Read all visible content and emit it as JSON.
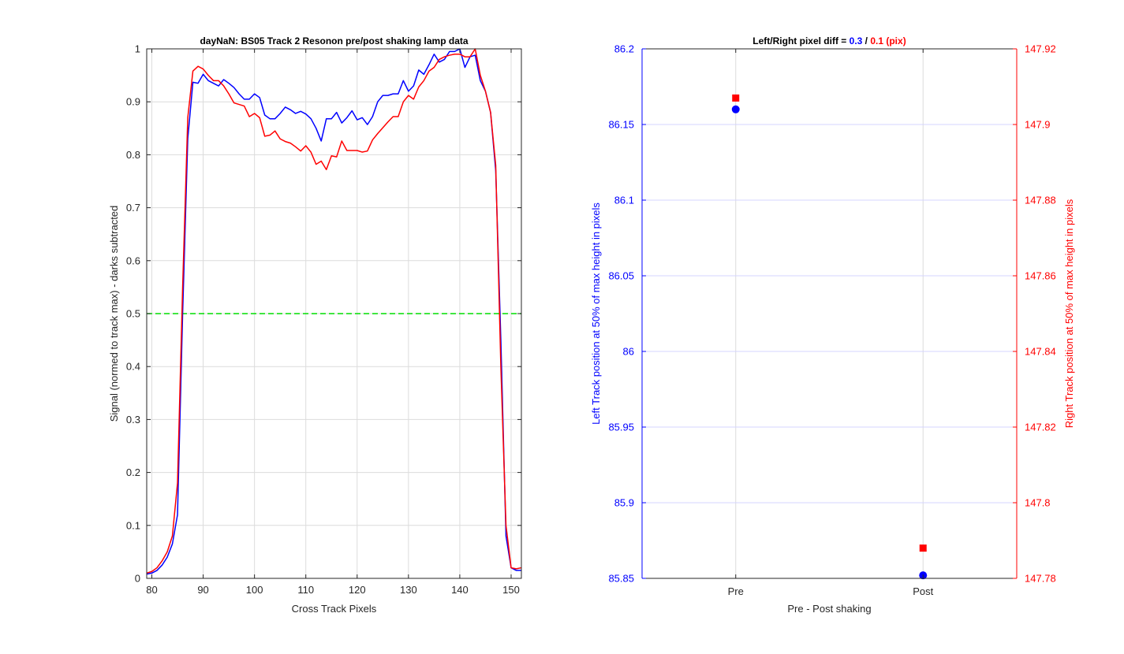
{
  "colors": {
    "blue": "#0000ff",
    "red": "#ff0000",
    "green": "#00dd00",
    "axis": "#262626",
    "grid": "#d9d9d9",
    "grid_blue": "#ccccff"
  },
  "chart_data": [
    {
      "type": "line",
      "title": "dayNaN: BS05  Track 2 Resonon pre/post shaking lamp data",
      "xlabel": "Cross Track Pixels",
      "ylabel": "Signal (normed to track max) - darks subtracted",
      "xlim": [
        79,
        152
      ],
      "ylim": [
        0,
        1
      ],
      "xticks": [
        80,
        90,
        100,
        110,
        120,
        130,
        140,
        150
      ],
      "yticks": [
        0,
        0.1,
        0.2,
        0.3,
        0.4,
        0.5,
        0.6,
        0.7,
        0.8,
        0.9,
        1
      ],
      "grid": true,
      "x": [
        79,
        80,
        81,
        82,
        83,
        84,
        85,
        86,
        87,
        88,
        89,
        90,
        91,
        92,
        93,
        94,
        95,
        96,
        97,
        98,
        99,
        100,
        101,
        102,
        103,
        104,
        105,
        106,
        107,
        108,
        109,
        110,
        111,
        112,
        113,
        114,
        115,
        116,
        117,
        118,
        119,
        120,
        121,
        122,
        123,
        124,
        125,
        126,
        127,
        128,
        129,
        130,
        131,
        132,
        133,
        134,
        135,
        136,
        137,
        138,
        139,
        140,
        141,
        142,
        143,
        144,
        145,
        146,
        147,
        148,
        149,
        150,
        151,
        152
      ],
      "series": [
        {
          "color": "#0000ff",
          "values": [
            0.008,
            0.01,
            0.015,
            0.025,
            0.04,
            0.065,
            0.12,
            0.5,
            0.83,
            0.937,
            0.935,
            0.952,
            0.94,
            0.935,
            0.93,
            0.942,
            0.935,
            0.927,
            0.915,
            0.905,
            0.905,
            0.915,
            0.908,
            0.875,
            0.868,
            0.868,
            0.878,
            0.89,
            0.885,
            0.878,
            0.882,
            0.877,
            0.868,
            0.85,
            0.826,
            0.868,
            0.868,
            0.88,
            0.86,
            0.87,
            0.883,
            0.866,
            0.87,
            0.857,
            0.872,
            0.9,
            0.912,
            0.912,
            0.915,
            0.915,
            0.94,
            0.92,
            0.93,
            0.96,
            0.952,
            0.97,
            0.99,
            0.975,
            0.98,
            0.995,
            0.995,
            1.0,
            0.965,
            0.985,
            0.988,
            0.94,
            0.92,
            0.88,
            0.77,
            0.45,
            0.08,
            0.02,
            0.015,
            0.015
          ]
        },
        {
          "color": "#ff0000",
          "values": [
            0.01,
            0.013,
            0.02,
            0.033,
            0.05,
            0.08,
            0.18,
            0.55,
            0.87,
            0.958,
            0.967,
            0.962,
            0.95,
            0.94,
            0.94,
            0.93,
            0.915,
            0.898,
            0.895,
            0.892,
            0.872,
            0.878,
            0.87,
            0.835,
            0.837,
            0.845,
            0.83,
            0.825,
            0.822,
            0.815,
            0.807,
            0.817,
            0.805,
            0.782,
            0.788,
            0.772,
            0.798,
            0.796,
            0.826,
            0.808,
            0.808,
            0.808,
            0.805,
            0.807,
            0.828,
            0.84,
            0.851,
            0.862,
            0.872,
            0.872,
            0.9,
            0.912,
            0.905,
            0.928,
            0.94,
            0.958,
            0.965,
            0.98,
            0.985,
            0.988,
            0.99,
            0.99,
            0.985,
            0.985,
            1.0,
            0.95,
            0.92,
            0.88,
            0.78,
            0.4,
            0.1,
            0.02,
            0.018,
            0.02
          ]
        }
      ],
      "threshold": {
        "value": 0.5,
        "color": "#00dd00",
        "style": "dashed"
      }
    },
    {
      "type": "scatter",
      "title_prefix": "Left/Right pixel diff = ",
      "title_left_value": "0.3",
      "title_sep": " / ",
      "title_right_value": "0.1 (pix)",
      "xlabel": "Pre - Post shaking",
      "categories": [
        "Pre",
        "Post"
      ],
      "ylabel_left": "Left Track position at 50% of max height in pixels",
      "ylabel_right": "Right Track position at 50% of max height in pixels",
      "ylim_left": [
        85.85,
        86.2
      ],
      "ylim_right": [
        147.78,
        147.92
      ],
      "yticks_left": [
        "85.85",
        "85.9",
        "85.95",
        "86",
        "86.05",
        "86.1",
        "86.15",
        "86.2"
      ],
      "yticks_right": [
        "147.78",
        "147.8",
        "147.82",
        "147.84",
        "147.86",
        "147.88",
        "147.9",
        "147.92"
      ],
      "left_series": {
        "color": "#0000ff",
        "marker": "circle",
        "values": [
          86.16,
          85.852
        ]
      },
      "right_series": {
        "color": "#ff0000",
        "marker": "square",
        "values": [
          147.907,
          147.788
        ]
      }
    }
  ]
}
